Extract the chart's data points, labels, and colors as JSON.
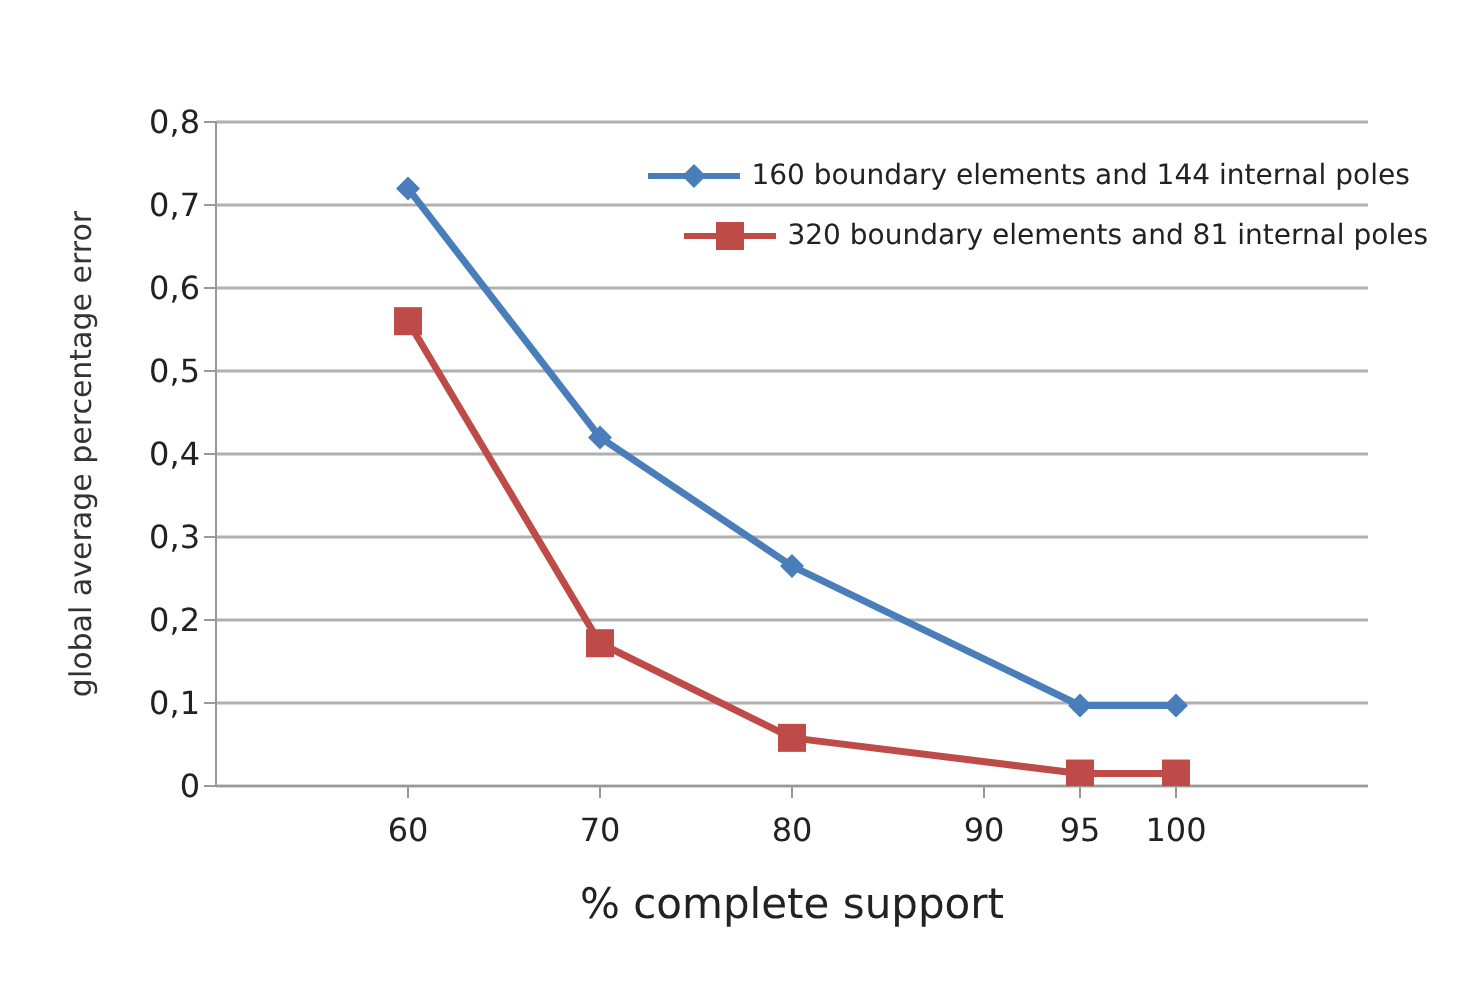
{
  "chart_data": {
    "type": "line",
    "xlabel": "% complete support",
    "ylabel": "global average percentage error",
    "x": [
      60,
      70,
      80,
      95,
      100
    ],
    "series": [
      {
        "name": "160 boundary elements and 144 internal poles",
        "color": "#4a7ebb",
        "marker": "diamond",
        "values": [
          0.72,
          0.42,
          0.265,
          0.097,
          0.097
        ]
      },
      {
        "name": "320 boundary elements and 81 internal poles",
        "color": "#be4b48",
        "marker": "square",
        "values": [
          0.56,
          0.172,
          0.058,
          0.015,
          0.015
        ]
      }
    ],
    "xlim": [
      50,
      110
    ],
    "xticks": [
      60,
      70,
      80,
      90,
      95,
      100
    ],
    "ylim": [
      0,
      0.8
    ],
    "yticks": [
      {
        "value": 0,
        "label": "0"
      },
      {
        "value": 0.1,
        "label": "0,1"
      },
      {
        "value": 0.2,
        "label": "0,2"
      },
      {
        "value": 0.3,
        "label": "0,3"
      },
      {
        "value": 0.4,
        "label": "0,4"
      },
      {
        "value": 0.5,
        "label": "0,5"
      },
      {
        "value": 0.6,
        "label": "0,6"
      },
      {
        "value": 0.7,
        "label": "0,7"
      },
      {
        "value": 0.8,
        "label": "0,8"
      }
    ],
    "grid": "y",
    "legend": "top right",
    "line_style": "solid"
  }
}
